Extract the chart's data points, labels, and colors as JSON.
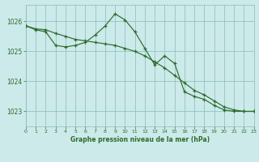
{
  "title": "Graphe pression niveau de la mer (hPa)",
  "bg_color": "#cceaea",
  "grid_color": "#88bbbb",
  "line_color": "#2d6b2d",
  "x_min": 0,
  "x_max": 23,
  "y_min": 1022.5,
  "y_max": 1026.55,
  "y_ticks": [
    1023,
    1024,
    1025,
    1026
  ],
  "x_ticks": [
    0,
    1,
    2,
    3,
    4,
    5,
    6,
    7,
    8,
    9,
    10,
    11,
    12,
    13,
    14,
    15,
    16,
    17,
    18,
    19,
    20,
    21,
    22,
    23
  ],
  "series1_x": [
    0,
    1,
    2,
    3,
    4,
    5,
    6,
    7,
    8,
    9,
    10,
    11,
    12,
    13,
    14,
    15,
    16,
    17,
    18,
    19,
    20,
    21,
    22,
    23
  ],
  "series1_y": [
    1025.85,
    1025.75,
    1025.72,
    1025.6,
    1025.5,
    1025.4,
    1025.35,
    1025.3,
    1025.25,
    1025.2,
    1025.1,
    1025.0,
    1024.85,
    1024.65,
    1024.45,
    1024.2,
    1023.95,
    1023.7,
    1023.55,
    1023.35,
    1023.15,
    1023.05,
    1023.0,
    1023.0
  ],
  "series2_x": [
    0,
    1,
    2,
    3,
    4,
    5,
    6,
    7,
    8,
    9,
    10,
    11,
    12,
    13,
    14,
    15,
    16,
    17,
    18,
    19,
    20,
    21,
    22,
    23
  ],
  "series2_y": [
    1025.85,
    1025.72,
    1025.65,
    1025.2,
    1025.15,
    1025.2,
    1025.3,
    1025.55,
    1025.85,
    1026.25,
    1026.05,
    1025.65,
    1025.1,
    1024.55,
    1024.85,
    1024.6,
    1023.65,
    1023.5,
    1023.4,
    1023.2,
    1023.05,
    1023.0,
    1023.0,
    1023.0
  ]
}
